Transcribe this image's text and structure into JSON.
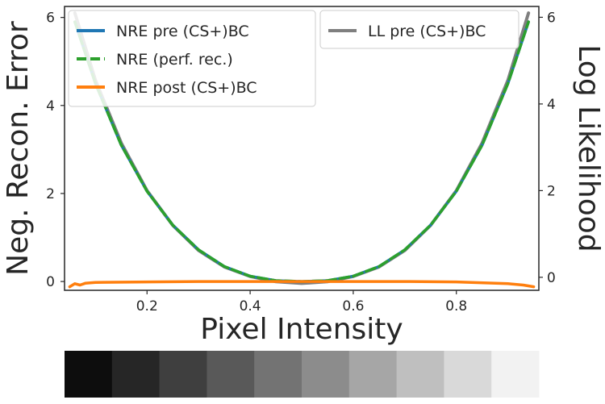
{
  "chart_data": {
    "type": "line",
    "xlabel": "Pixel Intensity",
    "ylabel_left": "Neg. Recon. Error",
    "ylabel_right": "Log Likelihood",
    "xlim": [
      0.04,
      0.96
    ],
    "ylim_left": [
      -0.2,
      6.25
    ],
    "ylim_right": [
      -0.3,
      6.25
    ],
    "xticks": [
      0.2,
      0.4,
      0.6,
      0.8
    ],
    "yticks_left": [
      0,
      2,
      4,
      6
    ],
    "yticks_right": [
      0,
      2,
      4,
      6
    ],
    "grid": false,
    "legend_left_placement": "top-left",
    "legend_right_placement": "top-right",
    "series": [
      {
        "name": "NRE pre (CS+)BC",
        "axis": "left",
        "color": "#1f77b4",
        "style": "solid",
        "x": [
          0.06,
          0.1,
          0.15,
          0.2,
          0.25,
          0.3,
          0.35,
          0.4,
          0.45,
          0.5,
          0.55,
          0.6,
          0.65,
          0.7,
          0.75,
          0.8,
          0.85,
          0.9,
          0.94
        ],
        "y": [
          5.9,
          4.5,
          3.1,
          2.05,
          1.28,
          0.72,
          0.34,
          0.12,
          0.02,
          0.0,
          0.02,
          0.12,
          0.34,
          0.72,
          1.28,
          2.05,
          3.1,
          4.5,
          5.9
        ]
      },
      {
        "name": "NRE (perf. rec.)",
        "axis": "left",
        "color": "#2ca02c",
        "style": "dashed",
        "x": [
          0.06,
          0.1,
          0.15,
          0.2,
          0.25,
          0.3,
          0.35,
          0.4,
          0.45,
          0.5,
          0.55,
          0.6,
          0.65,
          0.7,
          0.75,
          0.8,
          0.85,
          0.9,
          0.94
        ],
        "y": [
          5.9,
          4.5,
          3.1,
          2.05,
          1.28,
          0.72,
          0.34,
          0.12,
          0.02,
          0.0,
          0.02,
          0.12,
          0.34,
          0.72,
          1.28,
          2.05,
          3.1,
          4.5,
          5.9
        ]
      },
      {
        "name": "NRE post (CS+)BC",
        "axis": "left",
        "color": "#ff7f0e",
        "style": "solid",
        "x": [
          0.05,
          0.06,
          0.07,
          0.08,
          0.1,
          0.2,
          0.3,
          0.4,
          0.5,
          0.6,
          0.7,
          0.8,
          0.9,
          0.93,
          0.95
        ],
        "y": [
          -0.12,
          -0.05,
          -0.08,
          -0.04,
          -0.02,
          -0.01,
          0.0,
          0.0,
          0.0,
          0.0,
          0.0,
          -0.01,
          -0.05,
          -0.08,
          -0.12
        ]
      },
      {
        "name": "LL pre (CS+)BC",
        "axis": "right",
        "color": "#7f7f7f",
        "style": "solid",
        "x": [
          0.06,
          0.1,
          0.15,
          0.2,
          0.25,
          0.3,
          0.35,
          0.4,
          0.45,
          0.5,
          0.55,
          0.6,
          0.65,
          0.7,
          0.75,
          0.8,
          0.85,
          0.9,
          0.94
        ],
        "y": [
          6.1,
          4.55,
          3.1,
          2.0,
          1.2,
          0.62,
          0.24,
          0.02,
          -0.1,
          -0.14,
          -0.1,
          0.02,
          0.24,
          0.62,
          1.2,
          2.0,
          3.1,
          4.55,
          6.1
        ]
      }
    ],
    "colorbar": [
      "#0d0d0d",
      "#262626",
      "#3f3f3f",
      "#595959",
      "#737373",
      "#8c8c8c",
      "#a6a6a6",
      "#bfbfbf",
      "#d9d9d9",
      "#f2f2f2"
    ]
  }
}
